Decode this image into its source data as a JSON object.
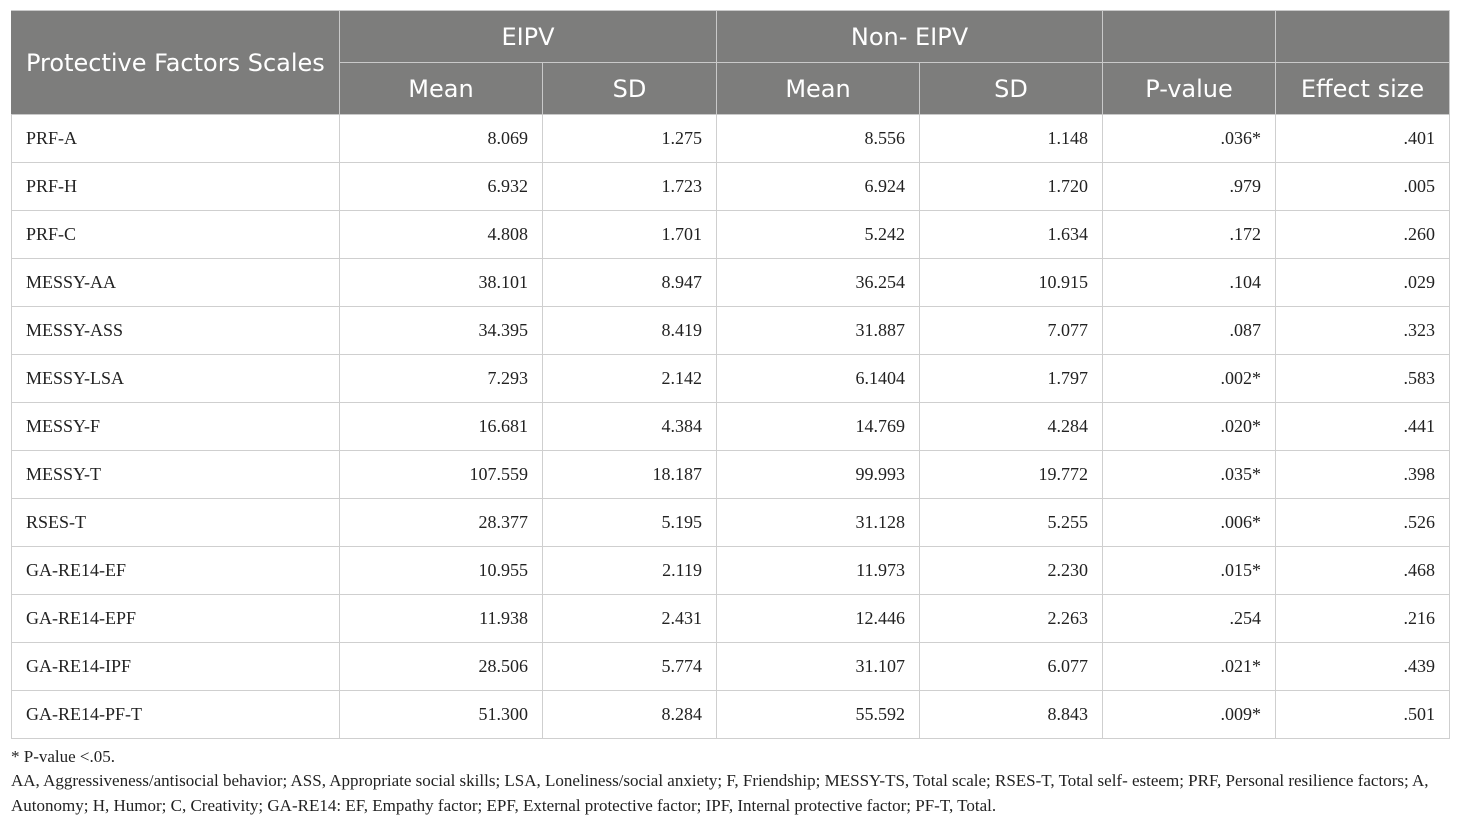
{
  "table": {
    "row_header": "Protective Factors Scales",
    "group_headers": [
      "EIPV",
      "Non- EIPV"
    ],
    "sub_headers": [
      "Mean",
      "SD",
      "Mean",
      "SD",
      "P-value",
      "Effect size"
    ],
    "rows": [
      {
        "scale": "PRF-A",
        "eipv_mean": "8.069",
        "eipv_sd": "1.275",
        "non_mean": "8.556",
        "non_sd": "1.148",
        "p": ".036*",
        "es": ".401"
      },
      {
        "scale": "PRF-H",
        "eipv_mean": "6.932",
        "eipv_sd": "1.723",
        "non_mean": "6.924",
        "non_sd": "1.720",
        "p": ".979",
        "es": ".005"
      },
      {
        "scale": "PRF-C",
        "eipv_mean": "4.808",
        "eipv_sd": "1.701",
        "non_mean": "5.242",
        "non_sd": "1.634",
        "p": ".172",
        "es": ".260"
      },
      {
        "scale": "MESSY-AA",
        "eipv_mean": "38.101",
        "eipv_sd": "8.947",
        "non_mean": "36.254",
        "non_sd": "10.915",
        "p": ".104",
        "es": ".029"
      },
      {
        "scale": "MESSY-ASS",
        "eipv_mean": "34.395",
        "eipv_sd": "8.419",
        "non_mean": "31.887",
        "non_sd": "7.077",
        "p": ".087",
        "es": ".323"
      },
      {
        "scale": "MESSY-LSA",
        "eipv_mean": "7.293",
        "eipv_sd": "2.142",
        "non_mean": "6.1404",
        "non_sd": "1.797",
        "p": ".002*",
        "es": ".583"
      },
      {
        "scale": "MESSY-F",
        "eipv_mean": "16.681",
        "eipv_sd": "4.384",
        "non_mean": "14.769",
        "non_sd": "4.284",
        "p": ".020*",
        "es": ".441"
      },
      {
        "scale": "MESSY-T",
        "eipv_mean": "107.559",
        "eipv_sd": "18.187",
        "non_mean": "99.993",
        "non_sd": "19.772",
        "p": ".035*",
        "es": ".398"
      },
      {
        "scale": "RSES-T",
        "eipv_mean": "28.377",
        "eipv_sd": "5.195",
        "non_mean": "31.128",
        "non_sd": "5.255",
        "p": ".006*",
        "es": ".526"
      },
      {
        "scale": "GA-RE14-EF",
        "eipv_mean": "10.955",
        "eipv_sd": "2.119",
        "non_mean": "11.973",
        "non_sd": "2.230",
        "p": ".015*",
        "es": ".468"
      },
      {
        "scale": "GA-RE14-EPF",
        "eipv_mean": "11.938",
        "eipv_sd": "2.431",
        "non_mean": "12.446",
        "non_sd": "2.263",
        "p": ".254",
        "es": ".216"
      },
      {
        "scale": "GA-RE14-IPF",
        "eipv_mean": "28.506",
        "eipv_sd": "5.774",
        "non_mean": "31.107",
        "non_sd": "6.077",
        "p": ".021*",
        "es": ".439"
      },
      {
        "scale": "GA-RE14-PF-T",
        "eipv_mean": "51.300",
        "eipv_sd": "8.284",
        "non_mean": "55.592",
        "non_sd": "8.843",
        "p": ".009*",
        "es": ".501"
      }
    ]
  },
  "footnotes": {
    "significance": "* P-value <.05.",
    "abbreviations": "AA, Aggressiveness/antisocial behavior; ASS, Appropriate social skills; LSA, Loneliness/social anxiety; F, Friendship; MESSY-TS, Total scale; RSES-T, Total self- esteem; PRF, Personal resilience factors; A, Autonomy; H, Humor; C, Creativity; GA-RE14: EF, Empathy factor; EPF, External protective factor; IPF, Internal protective factor; PF-T, Total."
  },
  "colors": {
    "header_bg": "#7d7d7c",
    "header_text": "#ffffff",
    "grid": "#cfcfcf"
  }
}
